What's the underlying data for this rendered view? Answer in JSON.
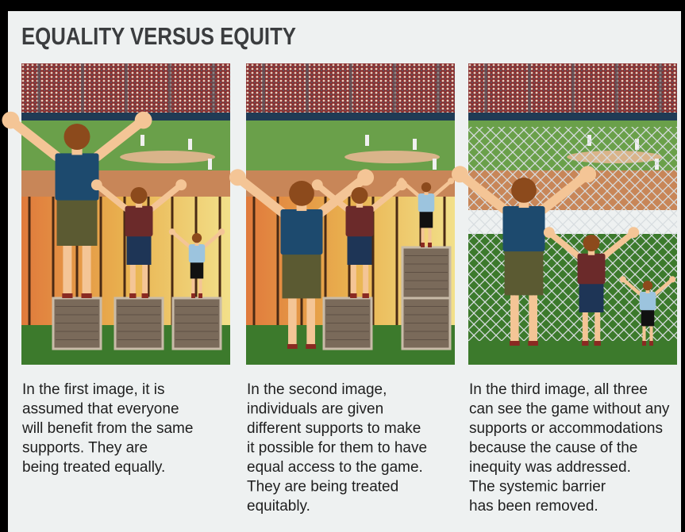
{
  "header": {
    "title": "EQUALITY VERSUS EQUITY"
  },
  "panels": [
    {
      "caption": [
        "In the first image, it is",
        "assumed that everyone",
        "will benefit from the same",
        "supports. They are",
        "being treated equally."
      ]
    },
    {
      "caption": [
        "In the second image,",
        "individuals are given",
        "different supports to make",
        "it possible for them to have",
        "equal access to the game.",
        "They are being treated",
        "equitably."
      ]
    },
    {
      "caption": [
        "In the third image, all three",
        "can see the game without any",
        "supports or accommodations",
        "because the cause of the",
        "inequity was addressed.",
        "The systemic barrier",
        "has been removed."
      ]
    }
  ]
}
